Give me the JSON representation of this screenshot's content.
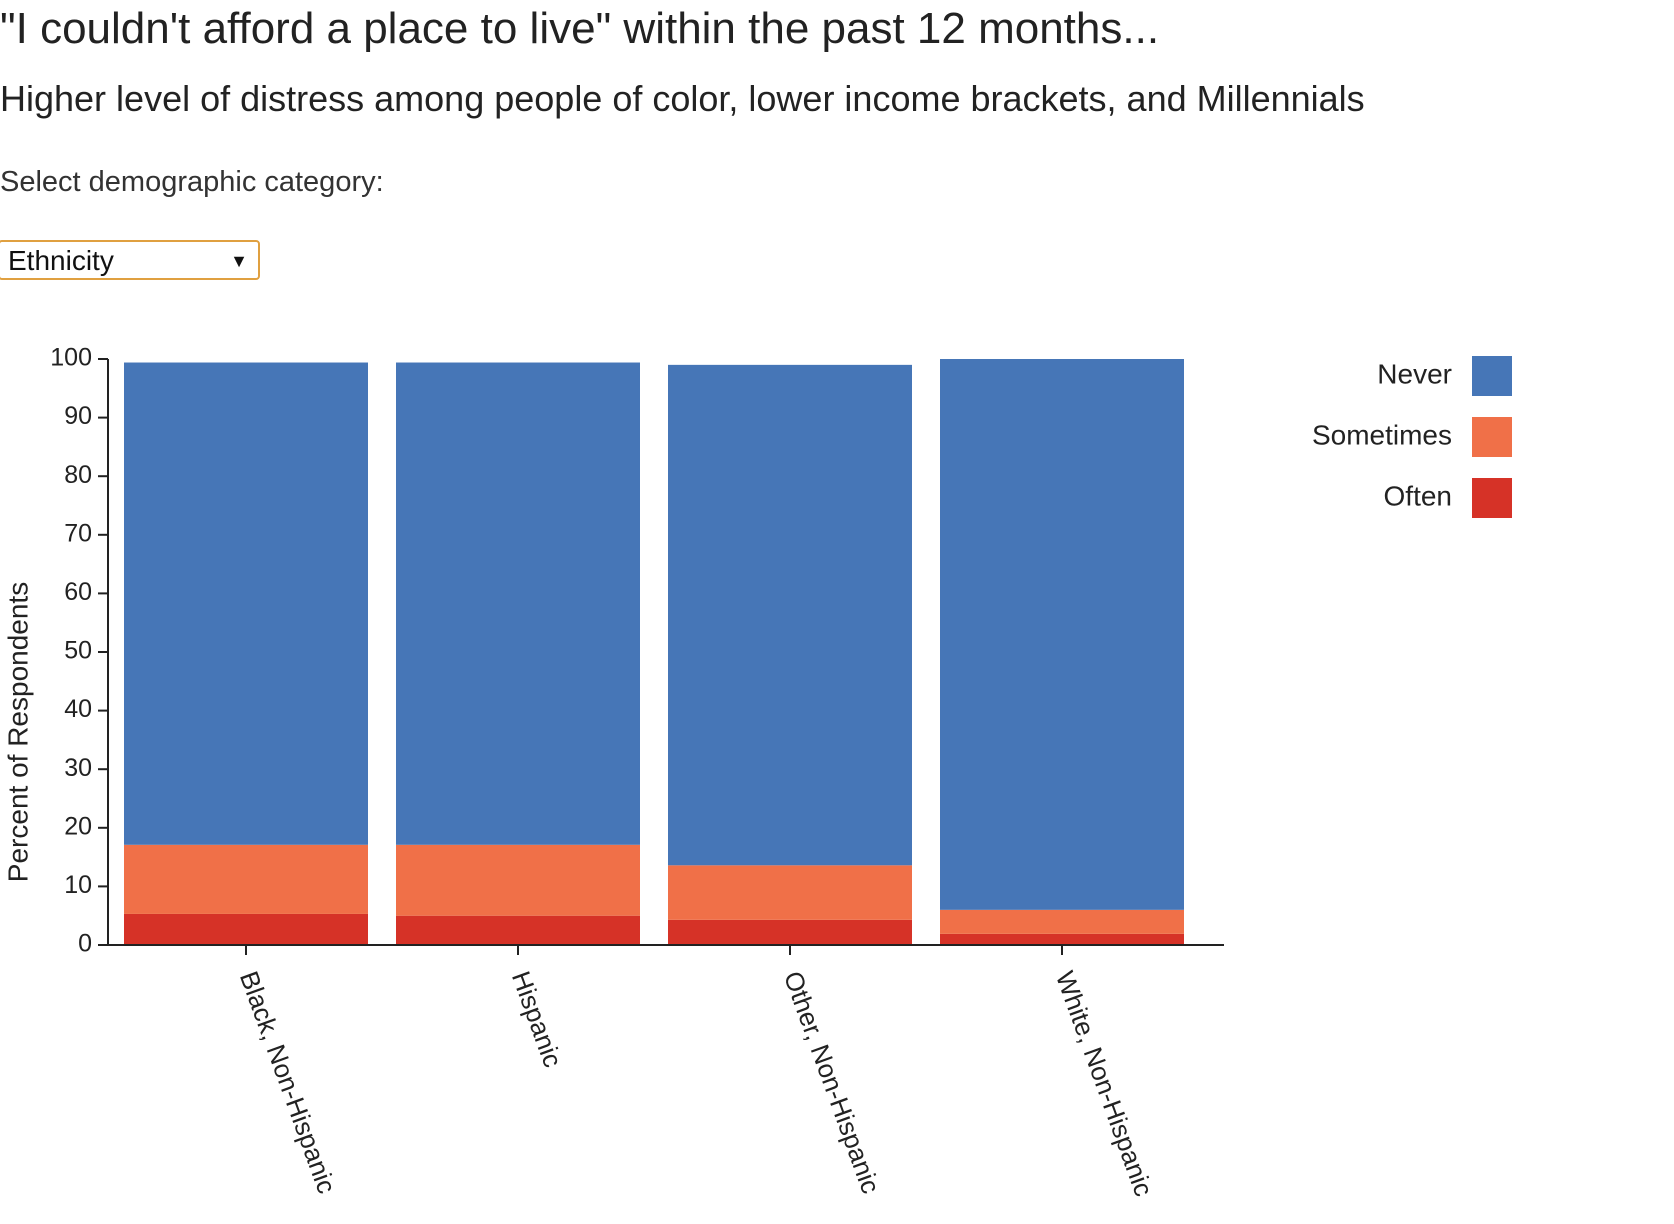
{
  "header": {
    "title": "\"I couldn't afford a place to live\" within the past 12 months...",
    "subtitle": "Higher level of distress among people of color, lower income brackets, and Millennials"
  },
  "controls": {
    "select_label": "Select demographic category:",
    "selected_value": "Ethnicity",
    "arrow_icon": "dropdown-arrow-icon"
  },
  "chart_data": {
    "type": "bar",
    "stacked": true,
    "categories": [
      "Black, Non-Hispanic",
      "Hispanic",
      "Other, Non-Hispanic",
      "White, Non-Hispanic"
    ],
    "series": [
      {
        "name": "Often",
        "color": "#d63227",
        "values": [
          5.3,
          5.0,
          4.3,
          1.9
        ]
      },
      {
        "name": "Sometimes",
        "color": "#f07048",
        "values": [
          11.8,
          12.1,
          9.3,
          4.1
        ]
      },
      {
        "name": "Never",
        "color": "#4676b7",
        "values": [
          82.3,
          82.3,
          85.4,
          94.0
        ]
      }
    ],
    "ylabel": "Percent of Respondents",
    "ylim": [
      0,
      100
    ],
    "yticks": [
      0,
      10,
      20,
      30,
      40,
      50,
      60,
      70,
      80,
      90,
      100
    ],
    "legend": {
      "placement": "right",
      "order": [
        "Never",
        "Sometimes",
        "Often"
      ]
    },
    "grid": false
  }
}
